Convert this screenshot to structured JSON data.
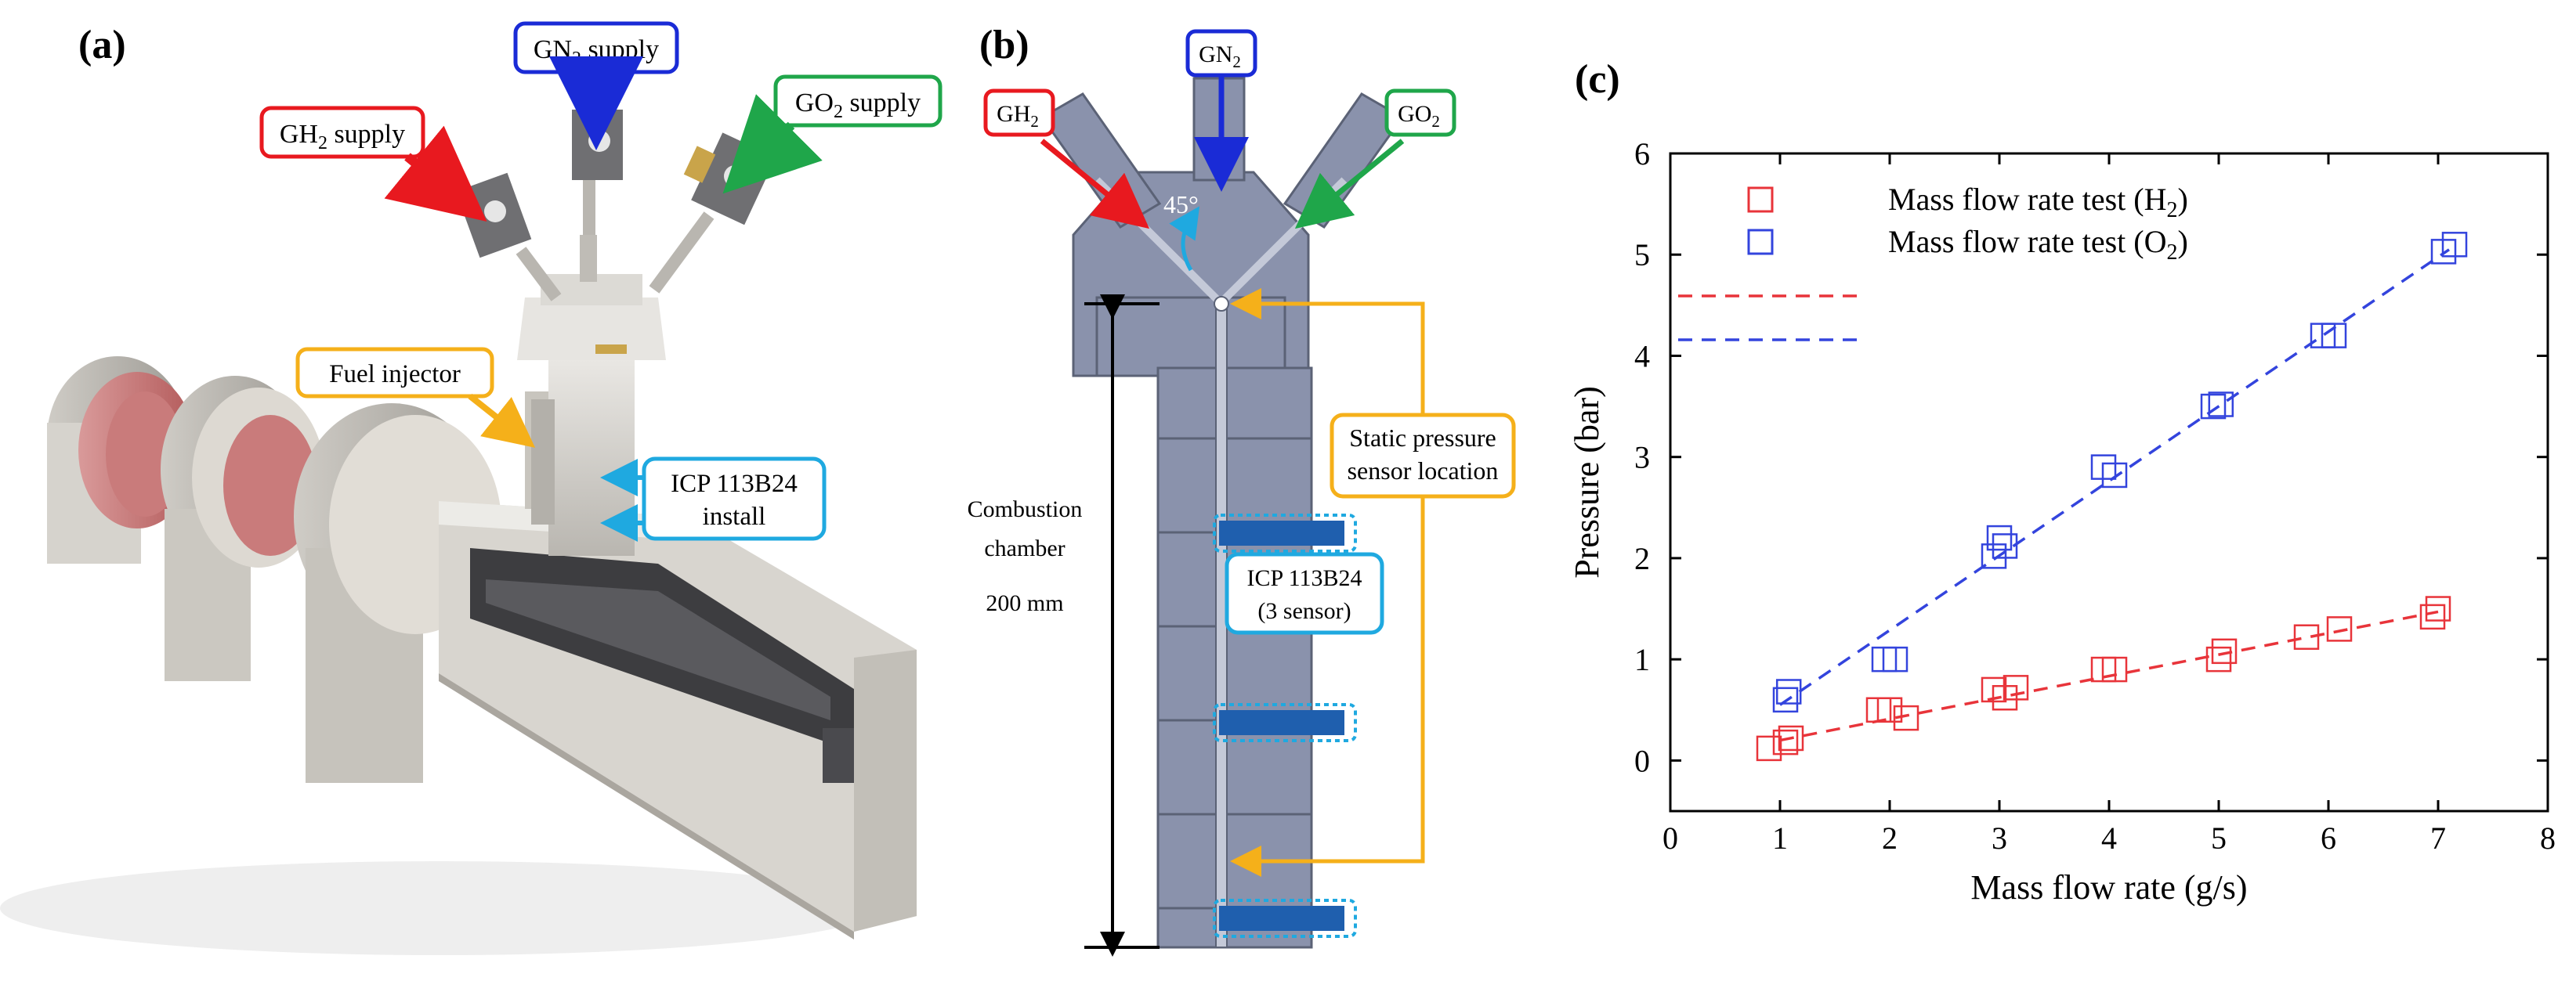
{
  "panels": {
    "a": {
      "letter": "(a)",
      "labels": {
        "gn2_supply": {
          "prefix": "GN",
          "sub": "2",
          "suffix": " supply"
        },
        "gh2_supply": {
          "prefix": "GH",
          "sub": "2",
          "suffix": " supply"
        },
        "go2_supply": {
          "prefix": "GO",
          "sub": "2",
          "suffix": " supply"
        },
        "fuel_injector": "Fuel injector",
        "icp_line1": "ICP 113B24",
        "icp_line2": "install"
      }
    },
    "b": {
      "letter": "(b)",
      "labels": {
        "gn2": {
          "prefix": "GN",
          "sub": "2"
        },
        "gh2": {
          "prefix": "GH",
          "sub": "2"
        },
        "go2": {
          "prefix": "GO",
          "sub": "2"
        },
        "angle": "45°",
        "static_line1": "Static pressure",
        "static_line2": "sensor location",
        "chamber_line1": "Combustion",
        "chamber_line2": "chamber",
        "chamber_length": "200 mm",
        "icp_line1": "ICP 113B24",
        "icp_line2": "(3 sensor)"
      }
    },
    "c": {
      "letter": "(c)"
    }
  },
  "colors": {
    "red": "#e8191f",
    "blue": "#1a2bd6",
    "green": "#1fa64a",
    "yellow": "#f5b01a",
    "cyan": "#1fa9e0",
    "steel": "#7e86a0",
    "steel_dark": "#5b6276",
    "sensor_blue": "#1f5fae",
    "plot_red": "#e8343a",
    "plot_blue": "#3344dd"
  },
  "chart_data": {
    "type": "scatter",
    "title": "",
    "xlabel": "Mass flow rate (g/s)",
    "ylabel": "Pressure (bar)",
    "xlim": [
      0,
      8
    ],
    "ylim": [
      -0.5,
      6
    ],
    "xticks": [
      "0",
      "1",
      "2",
      "3",
      "4",
      "5",
      "6",
      "7",
      "8"
    ],
    "yticks": [
      "0",
      "1",
      "2",
      "3",
      "4",
      "5",
      "6"
    ],
    "grid": false,
    "legend_position": "top-left",
    "series": [
      {
        "name": "Mass flow rate test (H",
        "name_sub": "2",
        "name_suffix": ")",
        "color": "#e8343a",
        "marker": "square",
        "x": [
          0.9,
          1.05,
          1.1,
          1.9,
          2.0,
          2.15,
          2.95,
          3.05,
          3.15,
          3.95,
          4.05,
          5.0,
          5.05,
          5.8,
          6.1,
          6.95,
          7.0
        ],
        "y": [
          0.12,
          0.18,
          0.22,
          0.5,
          0.5,
          0.42,
          0.7,
          0.62,
          0.72,
          0.9,
          0.9,
          1.0,
          1.08,
          1.22,
          1.3,
          1.42,
          1.5
        ],
        "fit": {
          "x": [
            1.0,
            7.0
          ],
          "y": [
            0.2,
            1.47
          ]
        }
      },
      {
        "name": "Mass flow rate test (O",
        "name_sub": "2",
        "name_suffix": ")",
        "color": "#3344dd",
        "marker": "square",
        "x": [
          1.05,
          1.08,
          1.95,
          2.05,
          2.95,
          3.05,
          3.0,
          3.95,
          4.05,
          4.95,
          5.02,
          5.95,
          6.05,
          7.05,
          7.15
        ],
        "y": [
          0.6,
          0.68,
          1.0,
          1.0,
          2.02,
          2.12,
          2.2,
          2.9,
          2.82,
          3.5,
          3.52,
          4.2,
          4.2,
          5.03,
          5.1
        ],
        "fit": {
          "x": [
            1.0,
            7.1
          ],
          "y": [
            0.55,
            5.05
          ]
        }
      }
    ]
  }
}
